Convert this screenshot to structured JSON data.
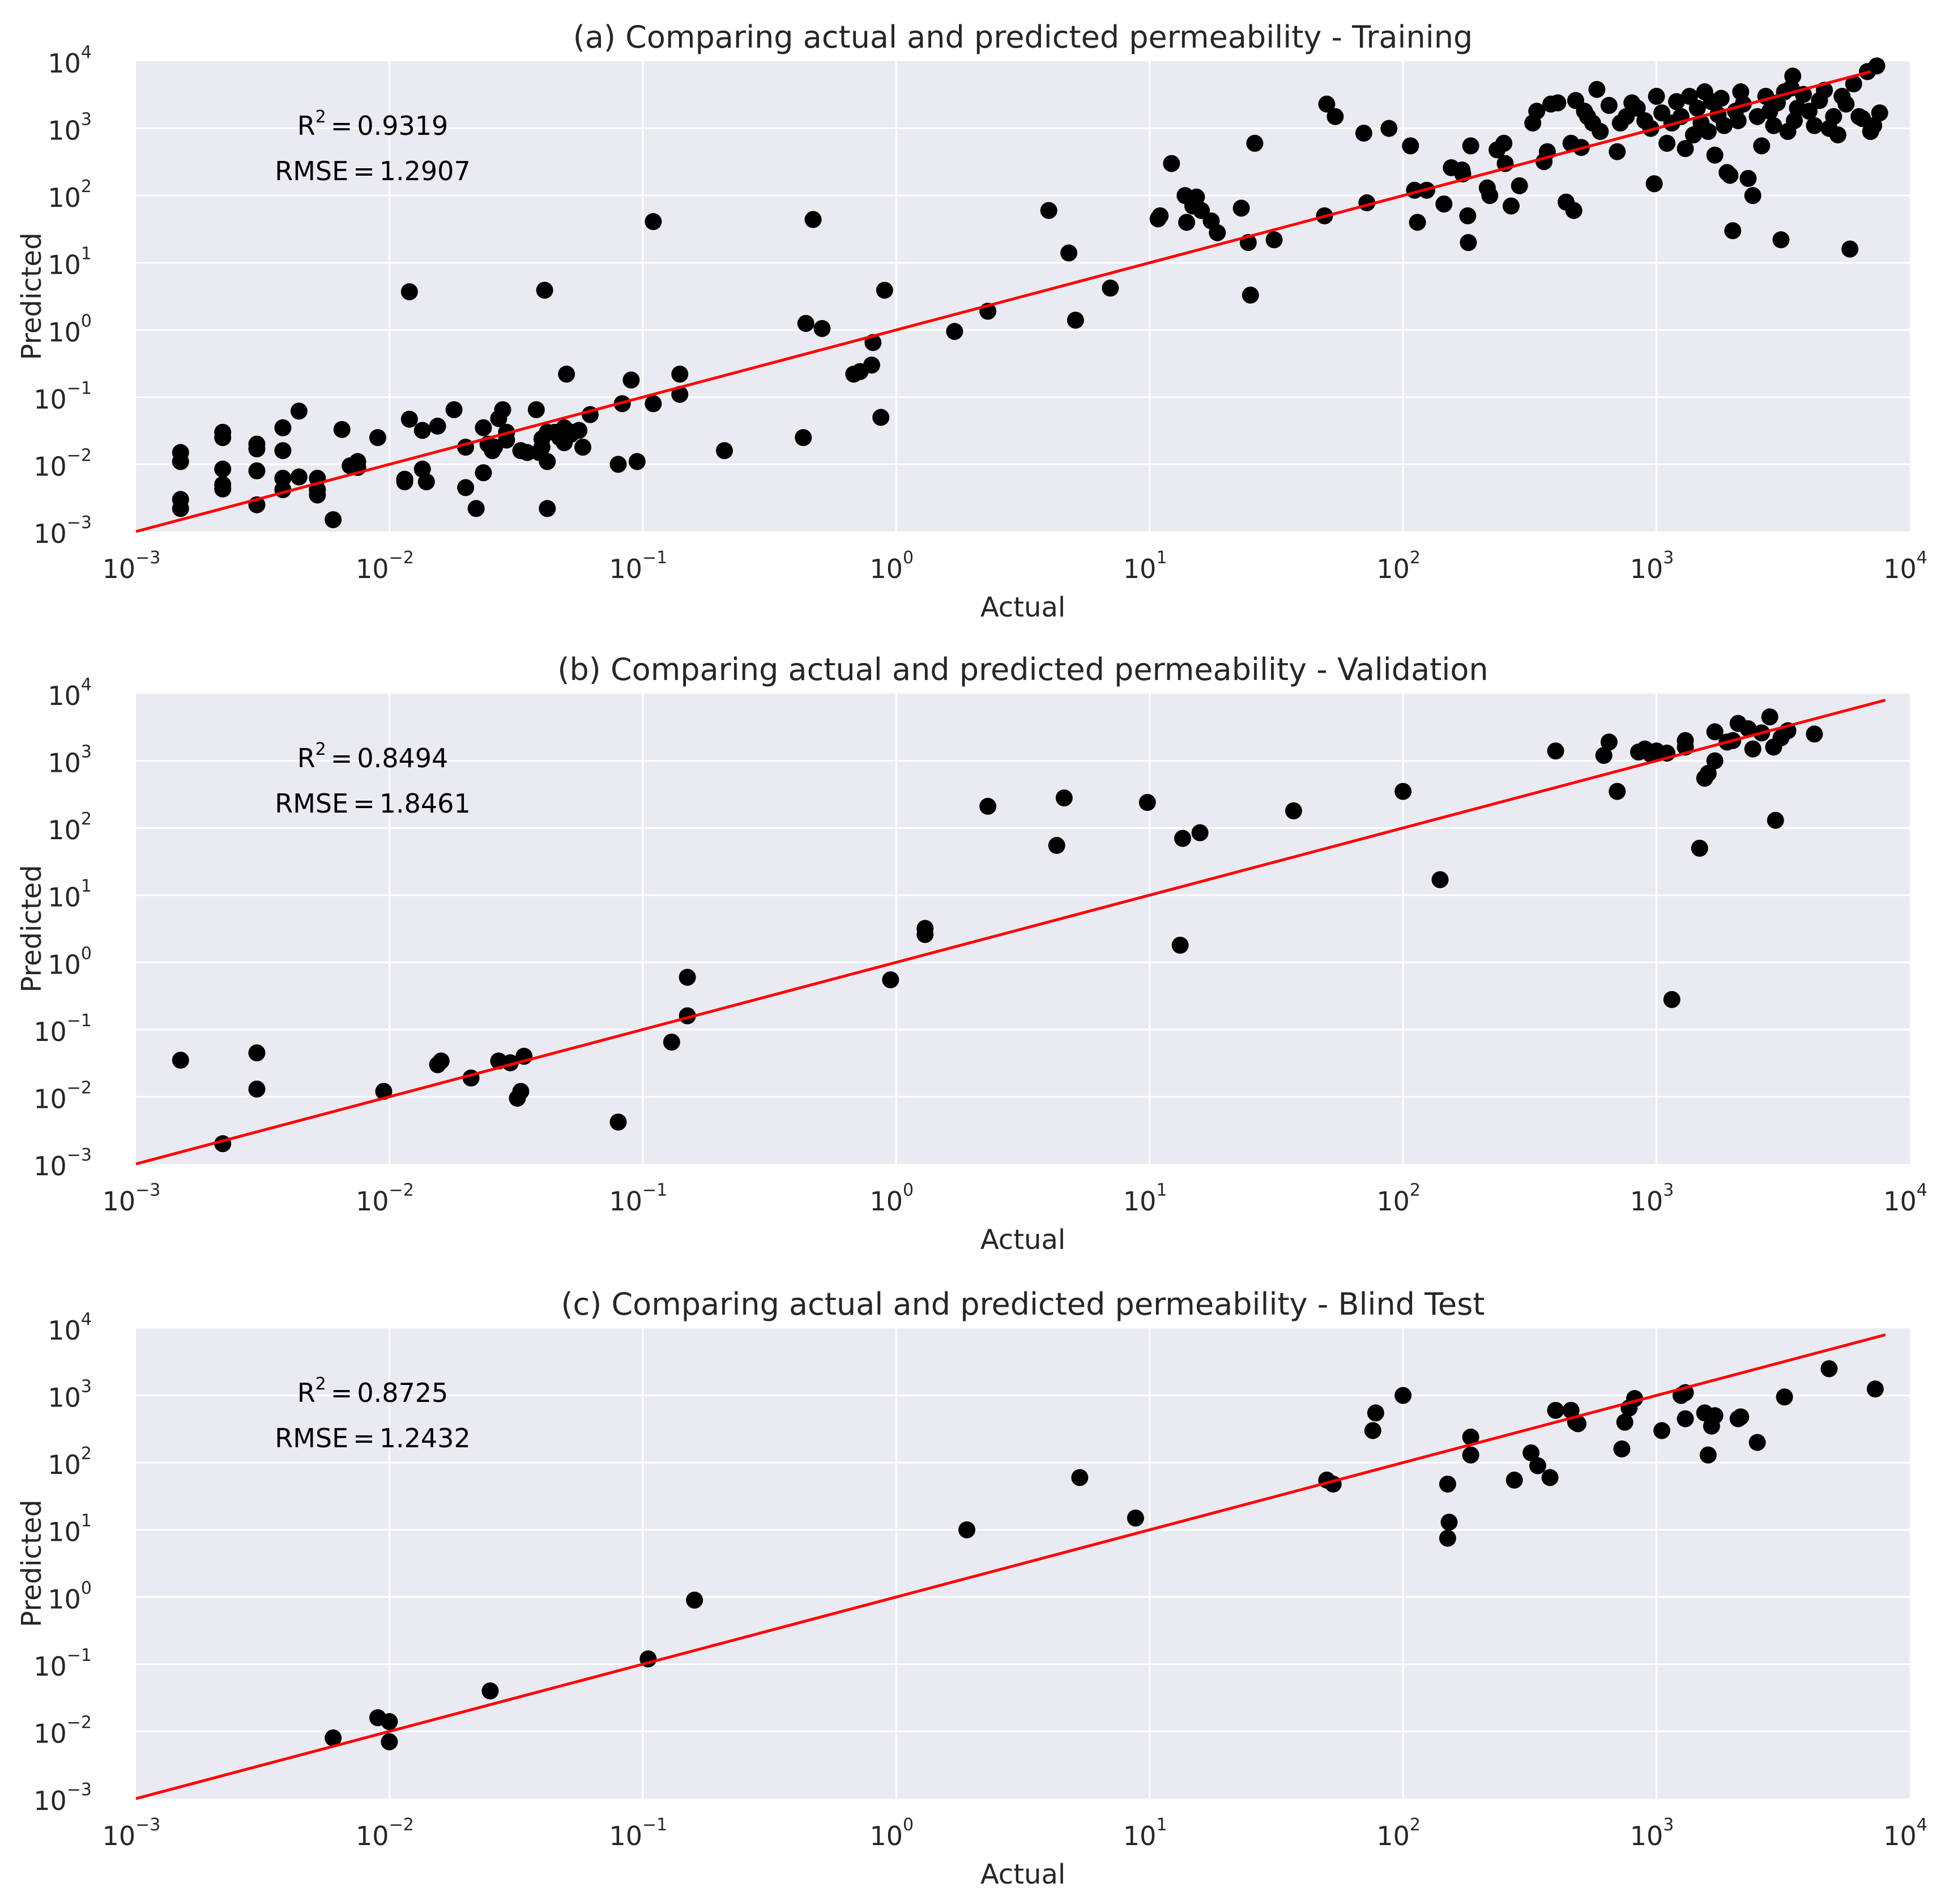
{
  "figure": {
    "axis": {
      "tick_base": "10",
      "tick_exponents": [
        "−3",
        "−2",
        "−1",
        "0",
        "1",
        "2",
        "3",
        "4"
      ],
      "equals": "="
    },
    "colors": {
      "background": "#eaeaf2",
      "grid": "#ffffff",
      "points": "#000000",
      "fit_line": "#ff0000",
      "text": "#262626"
    }
  },
  "chart_data": [
    {
      "type": "scatter",
      "title": "(a) Comparing actual and predicted permeability - Training",
      "xlabel": "Actual",
      "ylabel": "Predicted",
      "xscale": "log",
      "yscale": "log",
      "xlim": [
        0.001,
        10000
      ],
      "ylim": [
        0.001,
        10000
      ],
      "grid": true,
      "stats": {
        "r2_label": "R",
        "r2_exp": "2",
        "r2_value": "0.9319",
        "rmse_label": "RMSE",
        "rmse_value": "1.2907"
      },
      "fit_line": {
        "x": [
          0.001,
          7000
        ],
        "y": [
          0.001,
          7000
        ]
      },
      "points": [
        [
          0.0015,
          0.003
        ],
        [
          0.0015,
          0.0022
        ],
        [
          0.0015,
          0.011
        ],
        [
          0.0015,
          0.015
        ],
        [
          0.0022,
          0.03
        ],
        [
          0.0022,
          0.025
        ],
        [
          0.0022,
          0.0085
        ],
        [
          0.0022,
          0.005
        ],
        [
          0.0022,
          0.0043
        ],
        [
          0.003,
          0.02
        ],
        [
          0.003,
          0.017
        ],
        [
          0.003,
          0.008
        ],
        [
          0.003,
          0.0025
        ],
        [
          0.0038,
          0.035
        ],
        [
          0.0038,
          0.016
        ],
        [
          0.0038,
          0.0062
        ],
        [
          0.0038,
          0.0042
        ],
        [
          0.0044,
          0.062
        ],
        [
          0.0044,
          0.0065
        ],
        [
          0.0052,
          0.0062
        ],
        [
          0.0052,
          0.0042
        ],
        [
          0.0052,
          0.0035
        ],
        [
          0.006,
          0.0015
        ],
        [
          0.0065,
          0.033
        ],
        [
          0.007,
          0.0095
        ],
        [
          0.0075,
          0.011
        ],
        [
          0.0075,
          0.009
        ],
        [
          0.009,
          0.025
        ],
        [
          0.0115,
          0.006
        ],
        [
          0.0115,
          0.0055
        ],
        [
          0.012,
          3.7
        ],
        [
          0.012,
          0.047
        ],
        [
          0.0135,
          0.032
        ],
        [
          0.0135,
          0.0085
        ],
        [
          0.014,
          0.0055
        ],
        [
          0.0155,
          0.037
        ],
        [
          0.018,
          0.065
        ],
        [
          0.02,
          0.018
        ],
        [
          0.02,
          0.0045
        ],
        [
          0.022,
          0.0022
        ],
        [
          0.0235,
          0.035
        ],
        [
          0.0235,
          0.0075
        ],
        [
          0.0245,
          0.02
        ],
        [
          0.0255,
          0.016
        ],
        [
          0.026,
          0.018
        ],
        [
          0.027,
          0.048
        ],
        [
          0.028,
          0.065
        ],
        [
          0.029,
          0.03
        ],
        [
          0.029,
          0.023
        ],
        [
          0.033,
          0.016
        ],
        [
          0.035,
          0.015
        ],
        [
          0.038,
          0.065
        ],
        [
          0.039,
          0.015
        ],
        [
          0.04,
          0.018
        ],
        [
          0.04,
          0.024
        ],
        [
          0.041,
          3.9
        ],
        [
          0.042,
          0.03
        ],
        [
          0.042,
          0.011
        ],
        [
          0.042,
          0.0022
        ],
        [
          0.045,
          0.03
        ],
        [
          0.046,
          0.028
        ],
        [
          0.047,
          0.025
        ],
        [
          0.049,
          0.021
        ],
        [
          0.049,
          0.035
        ],
        [
          0.05,
          0.22
        ],
        [
          0.051,
          0.028
        ],
        [
          0.052,
          0.028
        ],
        [
          0.053,
          0.03
        ],
        [
          0.056,
          0.032
        ],
        [
          0.058,
          0.018
        ],
        [
          0.062,
          0.055
        ],
        [
          0.08,
          0.01
        ],
        [
          0.083,
          0.08
        ],
        [
          0.09,
          0.18
        ],
        [
          0.095,
          0.011
        ],
        [
          0.11,
          0.08
        ],
        [
          0.11,
          41
        ],
        [
          0.14,
          0.22
        ],
        [
          0.14,
          0.11
        ],
        [
          0.21,
          0.016
        ],
        [
          0.43,
          0.025
        ],
        [
          0.44,
          1.25
        ],
        [
          0.47,
          44
        ],
        [
          0.51,
          1.05
        ],
        [
          0.68,
          0.22
        ],
        [
          0.72,
          0.24
        ],
        [
          0.8,
          0.3
        ],
        [
          0.81,
          0.65
        ],
        [
          0.87,
          0.05
        ],
        [
          0.9,
          3.9
        ],
        [
          1.7,
          0.95
        ],
        [
          2.3,
          1.9
        ],
        [
          4,
          60
        ],
        [
          4.8,
          14
        ],
        [
          5.1,
          1.4
        ],
        [
          7,
          4.2
        ],
        [
          10.8,
          45
        ],
        [
          11,
          50
        ],
        [
          12.2,
          300
        ],
        [
          13.8,
          100
        ],
        [
          14,
          40
        ],
        [
          14.8,
          70
        ],
        [
          15.3,
          95
        ],
        [
          16,
          60
        ],
        [
          17.5,
          42
        ],
        [
          18.5,
          28
        ],
        [
          23,
          65
        ],
        [
          24.5,
          20
        ],
        [
          25,
          3.3
        ],
        [
          26,
          600
        ],
        [
          31,
          22
        ],
        [
          49,
          50
        ],
        [
          50,
          2300
        ],
        [
          54,
          1500
        ],
        [
          70,
          850
        ],
        [
          72,
          78
        ],
        [
          88,
          1000
        ],
        [
          107,
          550
        ],
        [
          111,
          120
        ],
        [
          114,
          40
        ],
        [
          124,
          120
        ],
        [
          145,
          75
        ],
        [
          155,
          260
        ],
        [
          171,
          240
        ],
        [
          172,
          210
        ],
        [
          180,
          50
        ],
        [
          181,
          20
        ],
        [
          185,
          550
        ],
        [
          215,
          130
        ],
        [
          220,
          100
        ],
        [
          235,
          480
        ],
        [
          250,
          600
        ],
        [
          253,
          300
        ],
        [
          267,
          70
        ],
        [
          288,
          140
        ],
        [
          325,
          1200
        ],
        [
          337,
          1800
        ],
        [
          360,
          320
        ],
        [
          371,
          450
        ],
        [
          383,
          2300
        ],
        [
          408,
          2400
        ],
        [
          440,
          80
        ],
        [
          460,
          600
        ],
        [
          472,
          60
        ],
        [
          480,
          2600
        ],
        [
          505,
          520
        ],
        [
          520,
          1800
        ],
        [
          535,
          1500
        ],
        [
          560,
          1200
        ],
        [
          582,
          3800
        ],
        [
          600,
          900
        ],
        [
          650,
          2200
        ],
        [
          700,
          450
        ],
        [
          720,
          1200
        ],
        [
          760,
          1500
        ],
        [
          800,
          2400
        ],
        [
          840,
          2000
        ],
        [
          900,
          1300
        ],
        [
          950,
          1000
        ],
        [
          980,
          150
        ],
        [
          1000,
          3000
        ],
        [
          1050,
          1700
        ],
        [
          1100,
          600
        ],
        [
          1150,
          1200
        ],
        [
          1200,
          2500
        ],
        [
          1250,
          1500
        ],
        [
          1300,
          500
        ],
        [
          1350,
          3000
        ],
        [
          1400,
          800
        ],
        [
          1450,
          2000
        ],
        [
          1500,
          1200
        ],
        [
          1550,
          3500
        ],
        [
          1600,
          900
        ],
        [
          1650,
          2500
        ],
        [
          1700,
          400
        ],
        [
          1750,
          1600
        ],
        [
          1800,
          2800
        ],
        [
          1850,
          1100
        ],
        [
          1900,
          220
        ],
        [
          1950,
          200
        ],
        [
          2000,
          30
        ],
        [
          2050,
          1800
        ],
        [
          2100,
          1300
        ],
        [
          2150,
          3500
        ],
        [
          2200,
          2300
        ],
        [
          2300,
          180
        ],
        [
          2400,
          100
        ],
        [
          2500,
          1500
        ],
        [
          2600,
          550
        ],
        [
          2700,
          3000
        ],
        [
          2800,
          1800
        ],
        [
          2900,
          1100
        ],
        [
          3000,
          2400
        ],
        [
          3100,
          22
        ],
        [
          3200,
          3500
        ],
        [
          3300,
          900
        ],
        [
          3400,
          4000
        ],
        [
          3450,
          6000
        ],
        [
          3500,
          1300
        ],
        [
          3600,
          2000
        ],
        [
          3800,
          3200
        ],
        [
          4000,
          1800
        ],
        [
          4200,
          1100
        ],
        [
          4400,
          2600
        ],
        [
          4600,
          3700
        ],
        [
          4800,
          1000
        ],
        [
          5000,
          1500
        ],
        [
          5200,
          800
        ],
        [
          5400,
          3000
        ],
        [
          5600,
          2300
        ],
        [
          5800,
          16
        ],
        [
          6000,
          4600
        ],
        [
          6300,
          1500
        ],
        [
          6500,
          1400
        ],
        [
          6800,
          7000
        ],
        [
          7000,
          900
        ],
        [
          7200,
          1100
        ],
        [
          7400,
          8500
        ],
        [
          7600,
          1700
        ]
      ]
    },
    {
      "type": "scatter",
      "title": "(b) Comparing actual and predicted permeability - Validation",
      "xlabel": "Actual",
      "ylabel": "Predicted",
      "xscale": "log",
      "yscale": "log",
      "xlim": [
        0.001,
        10000
      ],
      "ylim": [
        0.001,
        10000
      ],
      "grid": true,
      "stats": {
        "r2_label": "R",
        "r2_exp": "2",
        "r2_value": "0.8494",
        "rmse_label": "RMSE",
        "rmse_value": "1.8461"
      },
      "fit_line": {
        "x": [
          0.001,
          8000
        ],
        "y": [
          0.001,
          8000
        ]
      },
      "points": [
        [
          0.0015,
          0.035
        ],
        [
          0.0022,
          0.002
        ],
        [
          0.003,
          0.045
        ],
        [
          0.003,
          0.013
        ],
        [
          0.0095,
          0.012
        ],
        [
          0.0155,
          0.03
        ],
        [
          0.016,
          0.034
        ],
        [
          0.021,
          0.019
        ],
        [
          0.027,
          0.034
        ],
        [
          0.03,
          0.032
        ],
        [
          0.032,
          0.0095
        ],
        [
          0.033,
          0.012
        ],
        [
          0.034,
          0.04
        ],
        [
          0.08,
          0.0042
        ],
        [
          0.13,
          0.065
        ],
        [
          0.15,
          0.6
        ],
        [
          0.15,
          0.16
        ],
        [
          0.95,
          0.55
        ],
        [
          1.3,
          3.2
        ],
        [
          1.3,
          2.6
        ],
        [
          2.3,
          210
        ],
        [
          4.3,
          55
        ],
        [
          4.6,
          280
        ],
        [
          9.8,
          240
        ],
        [
          13.2,
          1.8
        ],
        [
          13.5,
          70
        ],
        [
          15.8,
          85
        ],
        [
          37,
          180
        ],
        [
          100,
          350
        ],
        [
          140,
          17
        ],
        [
          400,
          1400
        ],
        [
          620,
          1200
        ],
        [
          650,
          1900
        ],
        [
          700,
          350
        ],
        [
          850,
          1350
        ],
        [
          900,
          1500
        ],
        [
          950,
          1250
        ],
        [
          1000,
          1400
        ],
        [
          1100,
          1300
        ],
        [
          1150,
          0.28
        ],
        [
          1300,
          1600
        ],
        [
          1300,
          2000
        ],
        [
          1480,
          50
        ],
        [
          1550,
          550
        ],
        [
          1600,
          650
        ],
        [
          1700,
          1000
        ],
        [
          1700,
          2700
        ],
        [
          1900,
          1900
        ],
        [
          2000,
          2000
        ],
        [
          2100,
          3600
        ],
        [
          2300,
          3000
        ],
        [
          2400,
          1500
        ],
        [
          2600,
          2600
        ],
        [
          2800,
          4500
        ],
        [
          2900,
          1600
        ],
        [
          2950,
          130
        ],
        [
          3100,
          2200
        ],
        [
          3300,
          2800
        ],
        [
          4200,
          2500
        ]
      ]
    },
    {
      "type": "scatter",
      "title": "(c) Comparing actual and predicted permeability - Blind Test",
      "xlabel": "Actual",
      "ylabel": "Predicted",
      "xscale": "log",
      "yscale": "log",
      "xlim": [
        0.001,
        10000
      ],
      "ylim": [
        0.001,
        10000
      ],
      "grid": true,
      "stats": {
        "r2_label": "R",
        "r2_exp": "2",
        "r2_value": "0.8725",
        "rmse_label": "RMSE",
        "rmse_value": "1.2432"
      },
      "fit_line": {
        "x": [
          0.001,
          8000
        ],
        "y": [
          0.001,
          8000
        ]
      },
      "points": [
        [
          0.006,
          0.008
        ],
        [
          0.009,
          0.016
        ],
        [
          0.01,
          0.014
        ],
        [
          0.01,
          0.007
        ],
        [
          0.025,
          0.04
        ],
        [
          0.105,
          0.12
        ],
        [
          0.16,
          0.9
        ],
        [
          1.9,
          10
        ],
        [
          5.3,
          60
        ],
        [
          8.8,
          15
        ],
        [
          50,
          55
        ],
        [
          53,
          48
        ],
        [
          76,
          300
        ],
        [
          78,
          550
        ],
        [
          100,
          1000
        ],
        [
          150,
          48
        ],
        [
          152,
          13
        ],
        [
          150,
          7.5
        ],
        [
          185,
          240
        ],
        [
          185,
          130
        ],
        [
          275,
          55
        ],
        [
          320,
          140
        ],
        [
          340,
          90
        ],
        [
          380,
          60
        ],
        [
          400,
          600
        ],
        [
          460,
          600
        ],
        [
          480,
          400
        ],
        [
          490,
          380
        ],
        [
          730,
          160
        ],
        [
          750,
          400
        ],
        [
          780,
          650
        ],
        [
          820,
          900
        ],
        [
          1050,
          300
        ],
        [
          1250,
          1000
        ],
        [
          1300,
          1100
        ],
        [
          1300,
          450
        ],
        [
          1550,
          550
        ],
        [
          1600,
          130
        ],
        [
          1650,
          350
        ],
        [
          1700,
          500
        ],
        [
          2100,
          450
        ],
        [
          2150,
          480
        ],
        [
          2500,
          200
        ],
        [
          3200,
          950
        ],
        [
          4800,
          2500
        ],
        [
          7300,
          1250
        ]
      ]
    }
  ]
}
